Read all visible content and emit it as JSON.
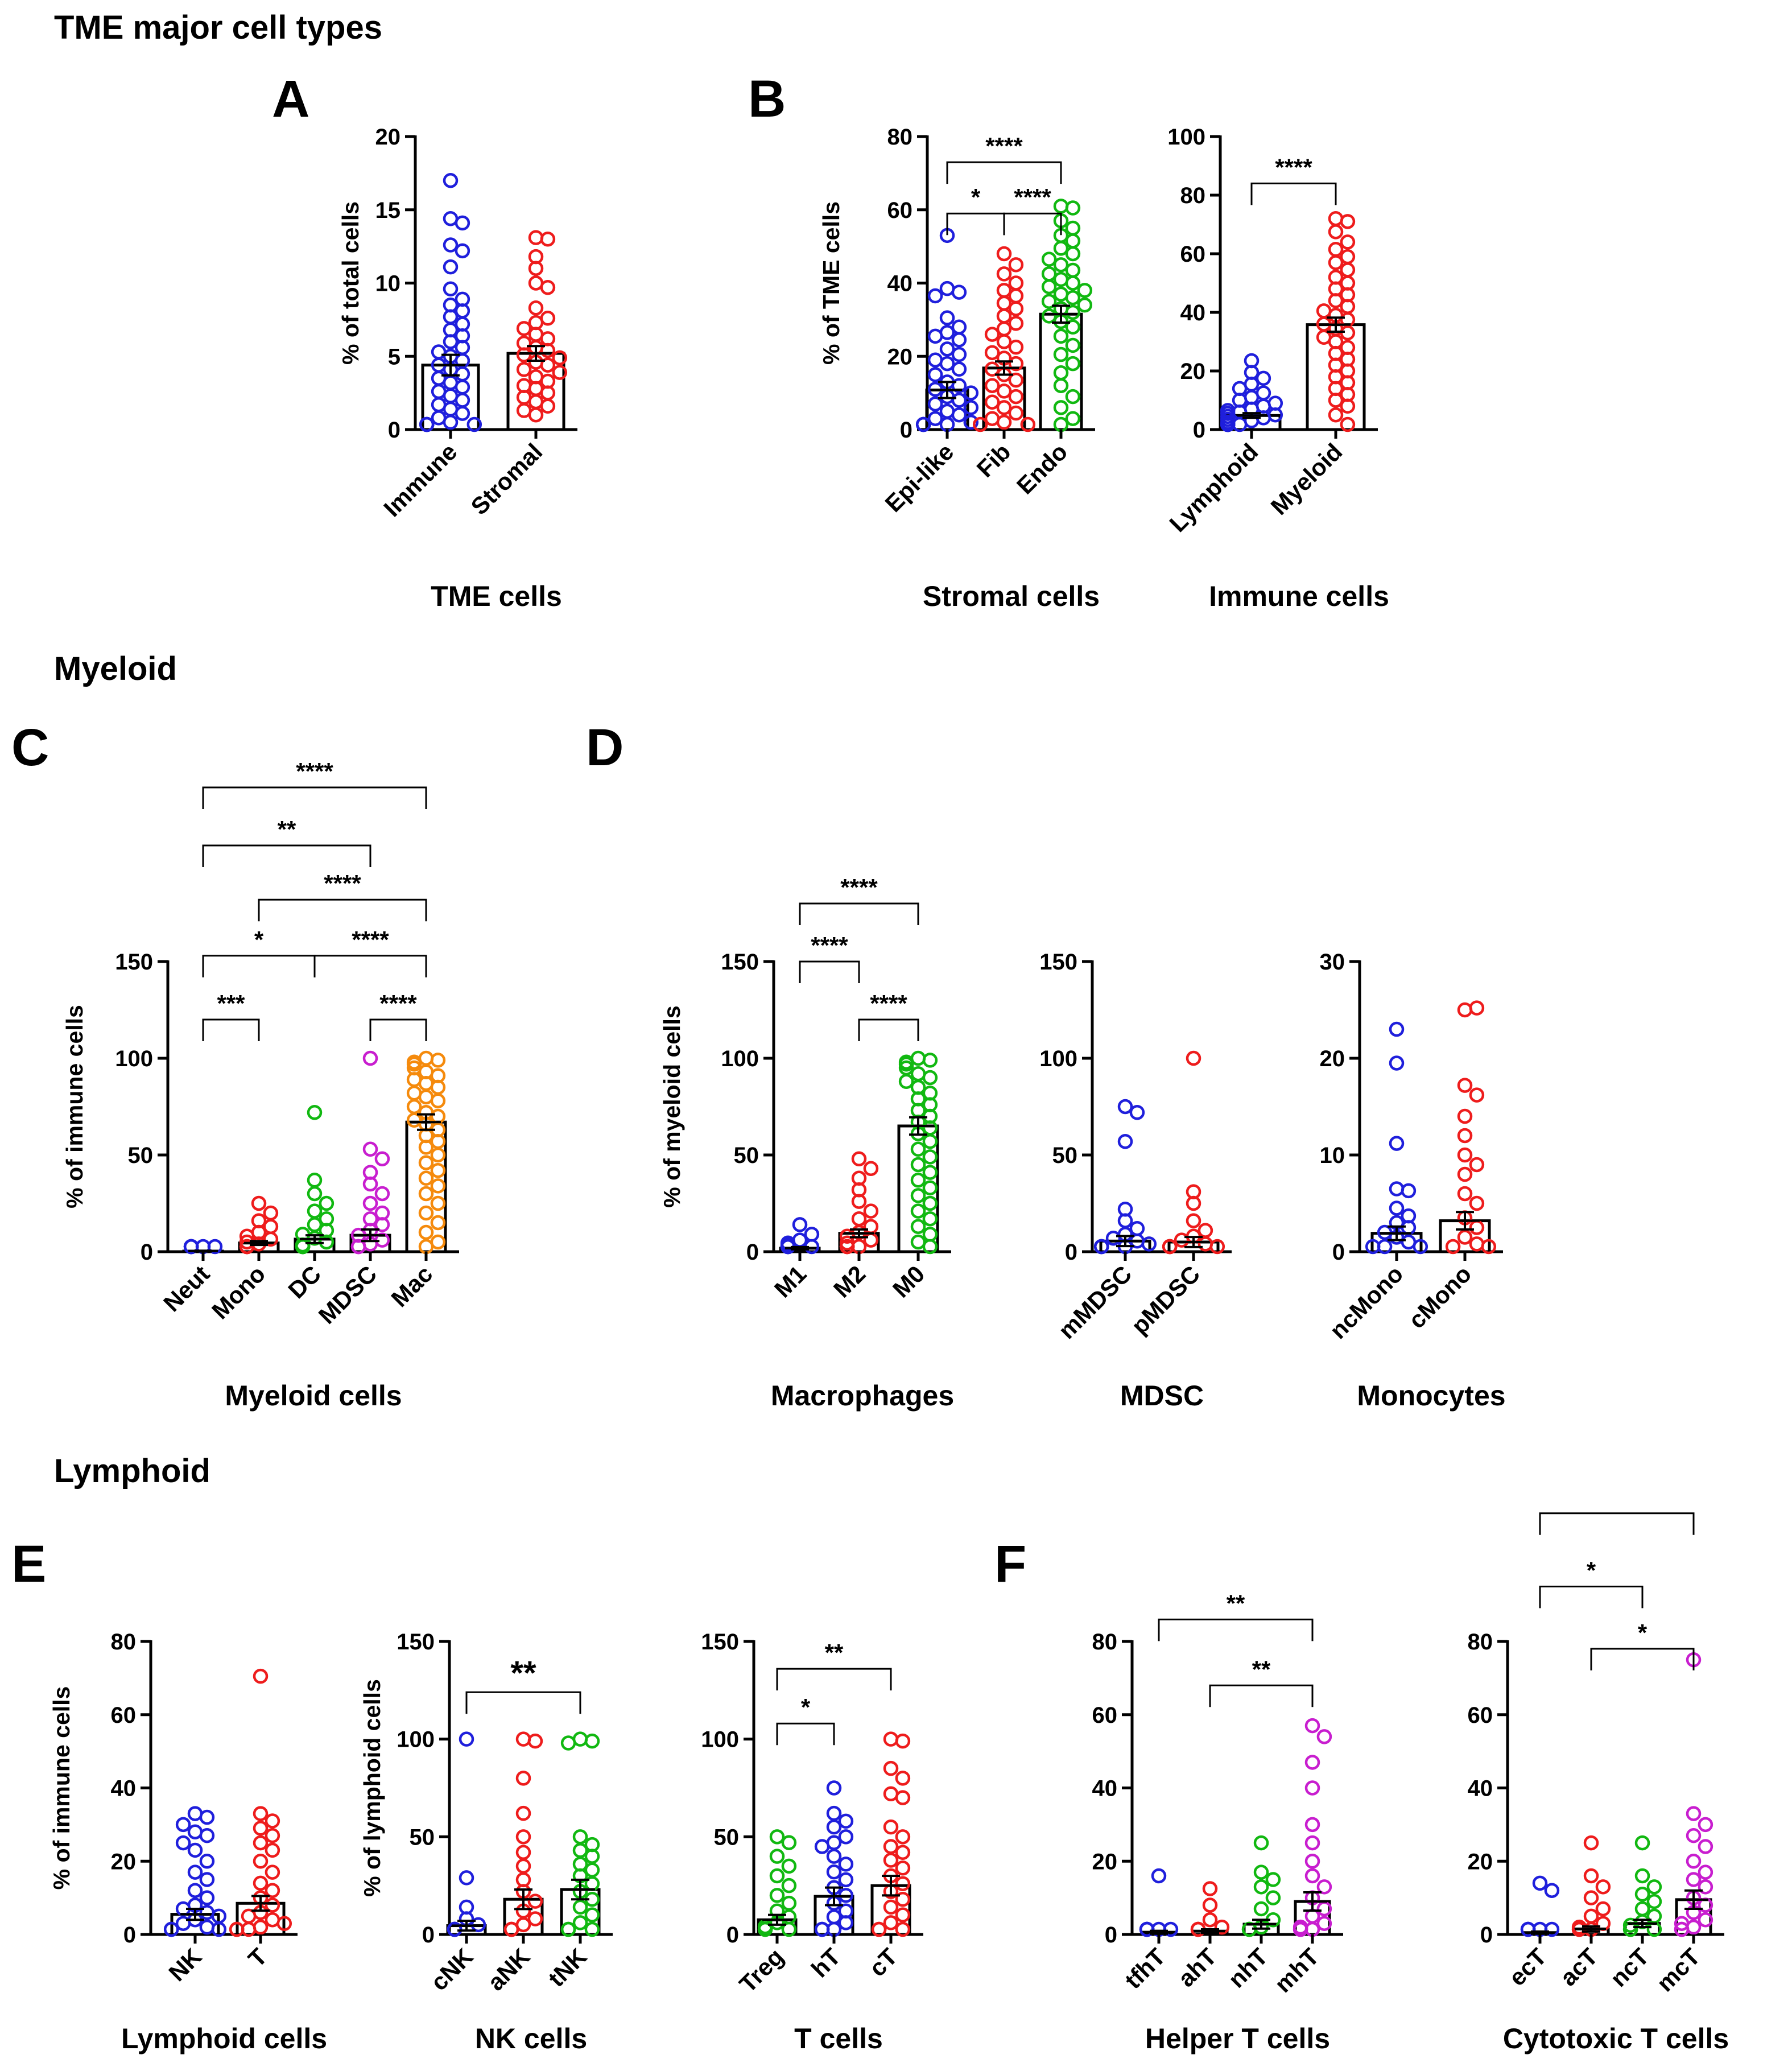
{
  "sections": {
    "tme": "TME major cell types",
    "myeloid": "Myeloid",
    "lymphoid": "Lymphoid"
  },
  "panel_labels": [
    "A",
    "B",
    "C",
    "D",
    "E",
    "F"
  ],
  "colors": {
    "blue": "#1f1fdc",
    "red": "#ee1c1c",
    "green": "#11b811",
    "magenta": "#c81ecf",
    "orange": "#f58a0c",
    "axis": "#000000"
  },
  "chart_data": [
    {
      "id": "A",
      "type": "bar",
      "title": "",
      "xlabel": "TME cells",
      "ylabel": "% of total cells",
      "ylim": [
        0,
        20
      ],
      "yticks": [
        0,
        5,
        10,
        15,
        20
      ],
      "categories": [
        "Immune",
        "Stromal"
      ],
      "values": [
        4.4,
        5.2
      ],
      "sem": [
        0.7,
        0.5
      ],
      "points": [
        [
          17,
          14.4,
          14.1,
          12.6,
          12.2,
          11.1,
          9.6,
          8.9,
          8.5,
          8.1,
          7.7,
          7.2,
          6.8,
          6.4,
          6.0,
          5.6,
          5.3,
          5.0,
          4.7,
          4.4,
          4.1,
          3.8,
          3.5,
          3.2,
          2.9,
          2.6,
          2.3,
          2.0,
          1.7,
          1.4,
          1.1,
          0.8,
          0.5,
          0.3,
          0.2,
          0.1,
          0.1,
          0.05
        ],
        [
          13.1,
          13.0,
          11.8,
          11.0,
          10.0,
          9.7,
          8.3,
          7.6,
          7.3,
          6.9,
          6.5,
          6.2,
          5.9,
          5.6,
          5.4,
          5.1,
          4.9,
          4.6,
          4.4,
          4.1,
          3.9,
          3.6,
          3.3,
          3.0,
          2.8,
          2.5,
          2.2,
          1.9,
          1.6,
          1.3,
          1.0
        ]
      ],
      "colors": [
        "blue",
        "red"
      ],
      "sig": []
    },
    {
      "id": "B1",
      "type": "bar",
      "title": "",
      "xlabel": "Stromal cells",
      "ylabel": "% of TME cells",
      "ylim": [
        0,
        80
      ],
      "yticks": [
        0,
        20,
        40,
        60,
        80
      ],
      "categories": [
        "Epi-like",
        "Fib",
        "Endo"
      ],
      "values": [
        10.8,
        16.8,
        31.5
      ],
      "sem": [
        2.2,
        1.8,
        2.3
      ],
      "points": [
        [
          53,
          38.5,
          37.5,
          36.5,
          30.5,
          28,
          26.5,
          25.5,
          24.5,
          22,
          20.5,
          19,
          18,
          16.5,
          15,
          13,
          12,
          11,
          10,
          9,
          8,
          7,
          6,
          5,
          4,
          3,
          2,
          1.5,
          1,
          0.5,
          0.2,
          0
        ],
        [
          48,
          45,
          42.5,
          40,
          38,
          36.5,
          34.5,
          33,
          31,
          29,
          27.5,
          26,
          24,
          22.5,
          21,
          19.5,
          18,
          16.5,
          15,
          13.5,
          12,
          10.5,
          9,
          7.5,
          6,
          4.5,
          3,
          2,
          1,
          0.5
        ],
        [
          61,
          60.5,
          57,
          55,
          53,
          51.5,
          49.5,
          48,
          46.5,
          45,
          43.5,
          42.5,
          41,
          40,
          39,
          38,
          37,
          36,
          35,
          34,
          33,
          32,
          31,
          29.5,
          28,
          25.5,
          23,
          20.5,
          18,
          15.5,
          12,
          9,
          6,
          3,
          1
        ]
      ],
      "colors": [
        "blue",
        "red",
        "green"
      ],
      "sig": [
        {
          "from": 0,
          "to": 2,
          "label": "****",
          "y": 73
        },
        {
          "from": 0,
          "to": 1,
          "label": "*",
          "y": 59
        },
        {
          "from": 1,
          "to": 2,
          "label": "****",
          "y": 59
        }
      ]
    },
    {
      "id": "B2",
      "type": "bar",
      "title": "",
      "xlabel": "Immune cells",
      "ylabel": "",
      "ylim": [
        0,
        100
      ],
      "yticks": [
        0,
        20,
        40,
        60,
        80,
        100
      ],
      "categories": [
        "Lymphoid",
        "Myeloid"
      ],
      "values": [
        4.8,
        35.8
      ],
      "sem": [
        0.8,
        2.4
      ],
      "points": [
        [
          23.5,
          19.5,
          17.5,
          15.5,
          14,
          12.5,
          11,
          10,
          9,
          8,
          7,
          6.5,
          6,
          5.5,
          5,
          4.5,
          4,
          3.5,
          3,
          2.5,
          2,
          1.5,
          1,
          0.7,
          0.4,
          0.2,
          0.1,
          0
        ],
        [
          72,
          71,
          67.5,
          64,
          61.5,
          59,
          57,
          54.5,
          52,
          50,
          48,
          46,
          44,
          42,
          40.5,
          39,
          37.5,
          36,
          34.5,
          33,
          31.5,
          30,
          28,
          26,
          24,
          22,
          20,
          18,
          16,
          14,
          12,
          10,
          8,
          5,
          2
        ]
      ],
      "colors": [
        "blue",
        "red"
      ],
      "sig": [
        {
          "from": 0,
          "to": 1,
          "label": "****",
          "y": 84
        }
      ]
    },
    {
      "id": "C",
      "type": "bar",
      "title": "",
      "xlabel": "Myeloid cells",
      "ylabel": "% of immune cells",
      "ylim": [
        0,
        150
      ],
      "yticks": [
        0,
        50,
        100,
        150
      ],
      "categories": [
        "Neut",
        "Mono",
        "DC",
        "MDSC",
        "Mac"
      ],
      "values": [
        0.3,
        4.5,
        6.5,
        8.5,
        67
      ],
      "sem": [
        0.2,
        1.0,
        2.0,
        3.0,
        4.0
      ],
      "points": [
        [
          1.5,
          1,
          0.7,
          0.5,
          0.3,
          0.2,
          0.1,
          0
        ],
        [
          25,
          20,
          16,
          13,
          10,
          8,
          6.5,
          5,
          4,
          3,
          2,
          1.5,
          1,
          0.5,
          0.2,
          0
        ],
        [
          72,
          37,
          30,
          25,
          21,
          17,
          14,
          11,
          9,
          7,
          5,
          3.5,
          2.5,
          1.5,
          1,
          0.5,
          0.2,
          0
        ],
        [
          100,
          53,
          48,
          41,
          35,
          30,
          25,
          20,
          17,
          14,
          11,
          8.5,
          6,
          4,
          2.5,
          1.5,
          0.5,
          0
        ],
        [
          100,
          99,
          98,
          97,
          95,
          93,
          91,
          89,
          87,
          85,
          82,
          80,
          78,
          75,
          72,
          70,
          68,
          66,
          63,
          60,
          57,
          54,
          50,
          46,
          42,
          38,
          34,
          30,
          25,
          20,
          15,
          10,
          5,
          1
        ]
      ],
      "colors": [
        "blue",
        "red",
        "green",
        "magenta",
        "orange"
      ],
      "sig": [
        {
          "from": 0,
          "to": 4,
          "label": "****",
          "y": 240
        },
        {
          "from": 0,
          "to": 3,
          "label": "**",
          "y": 210
        },
        {
          "from": 1,
          "to": 4,
          "label": "****",
          "y": 182
        },
        {
          "from": 0,
          "to": 2,
          "label": "*",
          "y": 153
        },
        {
          "from": 2,
          "to": 4,
          "label": "****",
          "y": 153
        },
        {
          "from": 0,
          "to": 1,
          "label": "***",
          "y": 120
        },
        {
          "from": 3,
          "to": 4,
          "label": "****",
          "y": 120
        }
      ]
    },
    {
      "id": "D1",
      "type": "bar",
      "title": "",
      "xlabel": "Macrophages",
      "ylabel": "% of myeloid cells",
      "ylim": [
        0,
        150
      ],
      "yticks": [
        0,
        50,
        100,
        150
      ],
      "categories": [
        "M1",
        "M2",
        "M0"
      ],
      "values": [
        1.8,
        9.5,
        65
      ],
      "sem": [
        0.6,
        2.0,
        4.5
      ],
      "points": [
        [
          14,
          9,
          6,
          4.5,
          3.5,
          2.5,
          2,
          1.5,
          1,
          0.6,
          0.3,
          0.1,
          0
        ],
        [
          48,
          43,
          38,
          32,
          26,
          21,
          17,
          13,
          10,
          8,
          6,
          4.5,
          3,
          2,
          1,
          0.5,
          0
        ],
        [
          100,
          99,
          98,
          97,
          95,
          92,
          90,
          88,
          85,
          82,
          79,
          76,
          73,
          70,
          67,
          64,
          61,
          57,
          53,
          49,
          45,
          41,
          37,
          33,
          29,
          25,
          21,
          17,
          13,
          9,
          5,
          1
        ]
      ],
      "colors": [
        "blue",
        "red",
        "green"
      ],
      "sig": [
        {
          "from": 0,
          "to": 2,
          "label": "****",
          "y": 180
        },
        {
          "from": 0,
          "to": 1,
          "label": "****",
          "y": 150
        },
        {
          "from": 1,
          "to": 2,
          "label": "****",
          "y": 120
        }
      ]
    },
    {
      "id": "D2",
      "type": "bar",
      "title": "",
      "xlabel": "MDSC",
      "ylabel": "",
      "ylim": [
        0,
        150
      ],
      "yticks": [
        0,
        50,
        100,
        150
      ],
      "categories": [
        "mMDSC",
        "pMDSC"
      ],
      "values": [
        5.5,
        5.0
      ],
      "sem": [
        2.6,
        2.6
      ],
      "points": [
        [
          75,
          72,
          57,
          22,
          16,
          12,
          9,
          7,
          5.5,
          4,
          3,
          2,
          1,
          0.5,
          0
        ],
        [
          100,
          31,
          25,
          16,
          11,
          8,
          6,
          4,
          3,
          2,
          1,
          0.5,
          0
        ]
      ],
      "colors": [
        "blue",
        "red"
      ],
      "sig": []
    },
    {
      "id": "D3",
      "type": "bar",
      "title": "",
      "xlabel": "Monocytes",
      "ylabel": "",
      "ylim": [
        0,
        30
      ],
      "yticks": [
        0,
        10,
        20,
        30
      ],
      "categories": [
        "ncMono",
        "cMono"
      ],
      "values": [
        1.9,
        3.2
      ],
      "sem": [
        0.7,
        0.9
      ],
      "points": [
        [
          23,
          19.5,
          11.2,
          6.5,
          6.3,
          4.5,
          3.7,
          3.0,
          2.5,
          2.0,
          1.5,
          1.0,
          0.6,
          0.3,
          0
        ],
        [
          25,
          25.2,
          17.2,
          16.2,
          14,
          12,
          10,
          9,
          8,
          6,
          5,
          3.5,
          2.5,
          1.5,
          0.8,
          0.3,
          0
        ]
      ],
      "colors": [
        "blue",
        "red"
      ],
      "sig": []
    },
    {
      "id": "E1",
      "type": "bar",
      "title": "",
      "xlabel": "Lymphoid cells",
      "ylabel": "% of immune cells",
      "ylim": [
        0,
        80
      ],
      "yticks": [
        0,
        20,
        40,
        60,
        80
      ],
      "categories": [
        "NK",
        "T"
      ],
      "values": [
        5.5,
        8.5
      ],
      "sem": [
        1.5,
        2.0
      ],
      "points": [
        [
          33,
          32,
          30,
          28,
          27,
          25,
          23,
          20,
          17,
          15,
          12,
          10,
          8,
          7,
          6,
          5,
          4,
          3,
          2,
          1,
          0.5,
          0
        ],
        [
          70.5,
          33,
          31,
          29,
          27,
          25,
          23,
          20,
          17,
          14,
          12,
          10,
          8,
          6,
          5,
          4,
          3,
          2,
          1,
          0.5,
          0
        ]
      ],
      "colors": [
        "blue",
        "red"
      ],
      "sig": []
    },
    {
      "id": "E2",
      "type": "bar",
      "title": "",
      "xlabel": "NK cells",
      "ylabel": "% of lymphoid cells",
      "ylim": [
        0,
        150
      ],
      "yticks": [
        0,
        50,
        100,
        150
      ],
      "categories": [
        "cNK",
        "aNK",
        "tNK"
      ],
      "values": [
        4.5,
        18,
        23
      ],
      "sem": [
        2.5,
        5.0,
        5.0
      ],
      "points": [
        [
          100,
          29,
          14,
          8,
          5,
          3,
          2,
          1,
          0.5,
          0
        ],
        [
          100,
          99,
          80,
          62,
          50,
          42,
          35,
          28,
          22,
          17,
          12,
          8,
          5,
          3,
          1,
          0
        ],
        [
          100,
          99,
          98,
          50,
          46,
          43,
          40,
          36,
          33,
          30,
          26,
          22,
          18,
          14,
          10,
          6,
          3,
          1,
          0
        ]
      ],
      "colors": [
        "blue",
        "red",
        "green"
      ],
      "sig": [
        {
          "from": 0,
          "to": 2,
          "label": "**",
          "y": 124,
          "big": true
        }
      ]
    },
    {
      "id": "E3",
      "type": "bar",
      "title": "",
      "xlabel": "T cells",
      "ylabel": "",
      "ylim": [
        0,
        150
      ],
      "yticks": [
        0,
        50,
        100,
        150
      ],
      "categories": [
        "Treg",
        "hT",
        "cT"
      ],
      "values": [
        7.5,
        19.5,
        25
      ],
      "sem": [
        2.5,
        4.5,
        5.0
      ],
      "points": [
        [
          50,
          47,
          40,
          35,
          30,
          25,
          20,
          16,
          12,
          9,
          6,
          4,
          2,
          1,
          0
        ],
        [
          75,
          62,
          58,
          55,
          50,
          47,
          45,
          40,
          36,
          32,
          28,
          24,
          20,
          16,
          12,
          9,
          6,
          3,
          1,
          0
        ],
        [
          100,
          99,
          85,
          80,
          72,
          70,
          55,
          50,
          45,
          42,
          38,
          34,
          30,
          26,
          22,
          18,
          14,
          10,
          6,
          3,
          1,
          0
        ]
      ],
      "colors": [
        "green",
        "blue",
        "red"
      ],
      "sig": [
        {
          "from": 0,
          "to": 2,
          "label": "**",
          "y": 136
        },
        {
          "from": 0,
          "to": 1,
          "label": "*",
          "y": 108
        }
      ]
    },
    {
      "id": "F1",
      "type": "bar",
      "title": "",
      "xlabel": "Helper T cells",
      "ylabel": "",
      "ylim": [
        0,
        80
      ],
      "yticks": [
        0,
        20,
        40,
        60,
        80
      ],
      "categories": [
        "tfhT",
        "ahT",
        "nhT",
        "mhT"
      ],
      "values": [
        0.6,
        0.9,
        2.8,
        9.0
      ],
      "sem": [
        0.4,
        0.5,
        1.2,
        2.5
      ],
      "points": [
        [
          16,
          1.5,
          1,
          0.5,
          0.3,
          0.1,
          0
        ],
        [
          12.5,
          8,
          4,
          2,
          1,
          0.5,
          0
        ],
        [
          25,
          17,
          15,
          13,
          10,
          7,
          4,
          2,
          1,
          0.5,
          0
        ],
        [
          57,
          54,
          47,
          40,
          30,
          25,
          20,
          16,
          13,
          10,
          7,
          5,
          3,
          2,
          1,
          0.5,
          0
        ]
      ],
      "colors": [
        "blue",
        "red",
        "green",
        "magenta"
      ],
      "sig": [
        {
          "from": 0,
          "to": 3,
          "label": "**",
          "y": 86
        },
        {
          "from": 1,
          "to": 3,
          "label": "**",
          "y": 68
        }
      ]
    },
    {
      "id": "F2",
      "type": "bar",
      "title": "",
      "xlabel": "Cytotoxic T cells",
      "ylabel": "",
      "ylim": [
        0,
        80
      ],
      "yticks": [
        0,
        20,
        40,
        60,
        80
      ],
      "categories": [
        "ecT",
        "acT",
        "ncT",
        "mcT"
      ],
      "values": [
        0.5,
        1.5,
        3.0,
        9.5
      ],
      "sem": [
        0.3,
        0.7,
        1.0,
        2.5
      ],
      "points": [
        [
          14,
          12,
          1.5,
          1,
          0.5,
          0.2,
          0
        ],
        [
          25,
          16,
          13,
          10,
          7,
          5,
          3,
          2,
          1,
          0.5,
          0
        ],
        [
          25,
          16,
          13,
          11,
          9,
          7,
          5,
          3.5,
          2.5,
          1.5,
          1,
          0
        ],
        [
          75,
          33,
          30,
          27,
          24,
          20,
          17,
          15,
          13,
          10,
          8,
          6,
          4,
          3,
          2,
          1,
          0
        ]
      ],
      "colors": [
        "blue",
        "red",
        "green",
        "magenta"
      ],
      "sig": [
        {
          "from": 0,
          "to": 3,
          "label": "",
          "y": 115
        },
        {
          "from": 0,
          "to": 2,
          "label": "*",
          "y": 95
        },
        {
          "from": 1,
          "to": 3,
          "label": "*",
          "y": 78
        }
      ]
    }
  ]
}
